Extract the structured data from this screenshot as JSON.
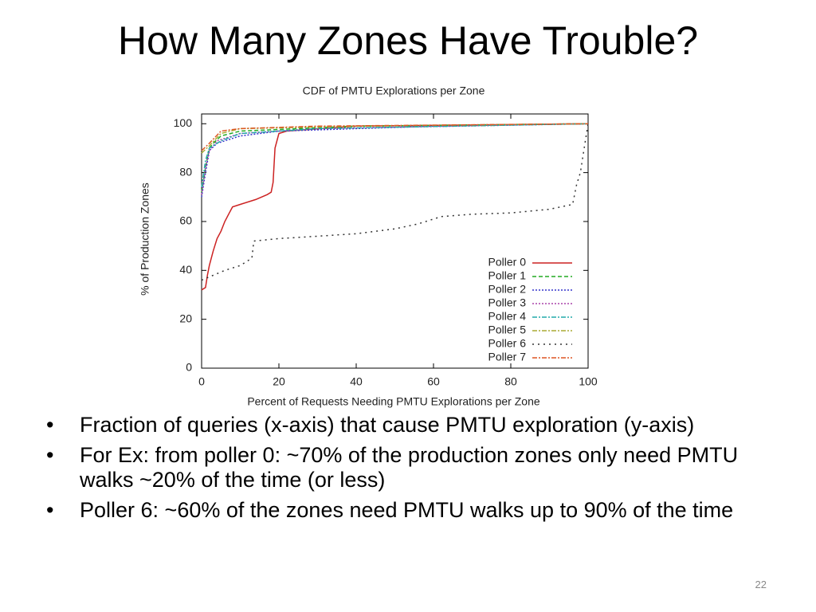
{
  "slide": {
    "title": "How Many Zones Have Trouble?",
    "bullets": [
      "Fraction of queries (x-axis) that cause PMTU exploration (y-axis)",
      "For Ex: from poller 0: ~70% of the production zones only need PMTU walks ~20% of the time (or less)",
      "Poller 6: ~60% of the zones need PMTU walks up to 90% of the time"
    ],
    "page_number": "22"
  },
  "chart_data": {
    "type": "line",
    "title": "CDF of PMTU Explorations per Zone",
    "x_label": "Percent of Requests Needing PMTU Explorations per Zone",
    "y_label": "% of Production Zones",
    "xlim": [
      0,
      100
    ],
    "ylim": [
      0,
      104
    ],
    "xticks": [
      0,
      20,
      40,
      60,
      80,
      100
    ],
    "yticks": [
      0,
      20,
      40,
      60,
      80,
      100
    ],
    "legend": "bottom-right",
    "series": [
      {
        "name": "Poller 0",
        "color": "#cc2222",
        "dash": "solid",
        "x": [
          0,
          1,
          1.5,
          2,
          3,
          4,
          5,
          6,
          7,
          8,
          10,
          14,
          17,
          18,
          18.5,
          19,
          20,
          22,
          40,
          100
        ],
        "values": [
          32,
          33,
          38,
          42,
          48,
          53,
          56,
          60,
          63,
          66,
          67,
          69,
          71,
          72,
          76,
          90,
          96,
          97,
          99,
          100
        ]
      },
      {
        "name": "Poller 1",
        "color": "#22aa22",
        "dash": "dashed",
        "x": [
          0,
          1,
          2,
          3,
          5,
          10,
          40,
          100
        ],
        "values": [
          72,
          82,
          90,
          92,
          95,
          97,
          99,
          100
        ]
      },
      {
        "name": "Poller 2",
        "color": "#3333cc",
        "dash": "dotted",
        "x": [
          0,
          1,
          2,
          4,
          10,
          20,
          60,
          100
        ],
        "values": [
          70,
          80,
          89,
          92,
          95,
          97,
          99,
          100
        ]
      },
      {
        "name": "Poller 3",
        "color": "#aa44aa",
        "dash": "dotted",
        "x": [
          0,
          1,
          2,
          4,
          10,
          30,
          100
        ],
        "values": [
          71,
          82,
          89,
          93,
          96,
          98,
          100
        ]
      },
      {
        "name": "Poller 4",
        "color": "#22aaaa",
        "dash": "dashdot",
        "x": [
          0,
          1,
          2,
          5,
          10,
          30,
          100
        ],
        "values": [
          74,
          85,
          90,
          93,
          96,
          98,
          100
        ]
      },
      {
        "name": "Poller 5",
        "color": "#aaaa33",
        "dash": "dashdot",
        "x": [
          0,
          2,
          5,
          10,
          40,
          100
        ],
        "values": [
          88,
          91,
          96,
          98,
          99,
          100
        ]
      },
      {
        "name": "Poller 6",
        "color": "#333333",
        "dash": "sparse",
        "x": [
          0,
          3,
          6,
          10,
          13,
          13.5,
          20,
          30,
          40,
          50,
          56,
          62,
          70,
          80,
          90,
          96,
          97,
          98,
          99,
          100
        ],
        "values": [
          36,
          38,
          40,
          42,
          45,
          52,
          53,
          54,
          55,
          57,
          59,
          62,
          63,
          63.5,
          65,
          67,
          75,
          80,
          90,
          100
        ]
      },
      {
        "name": "Poller 7",
        "color": "#dd5522",
        "dash": "dashdot",
        "x": [
          0,
          2,
          5,
          10,
          30,
          100
        ],
        "values": [
          89,
          92,
          97,
          98,
          99,
          100
        ]
      }
    ]
  }
}
